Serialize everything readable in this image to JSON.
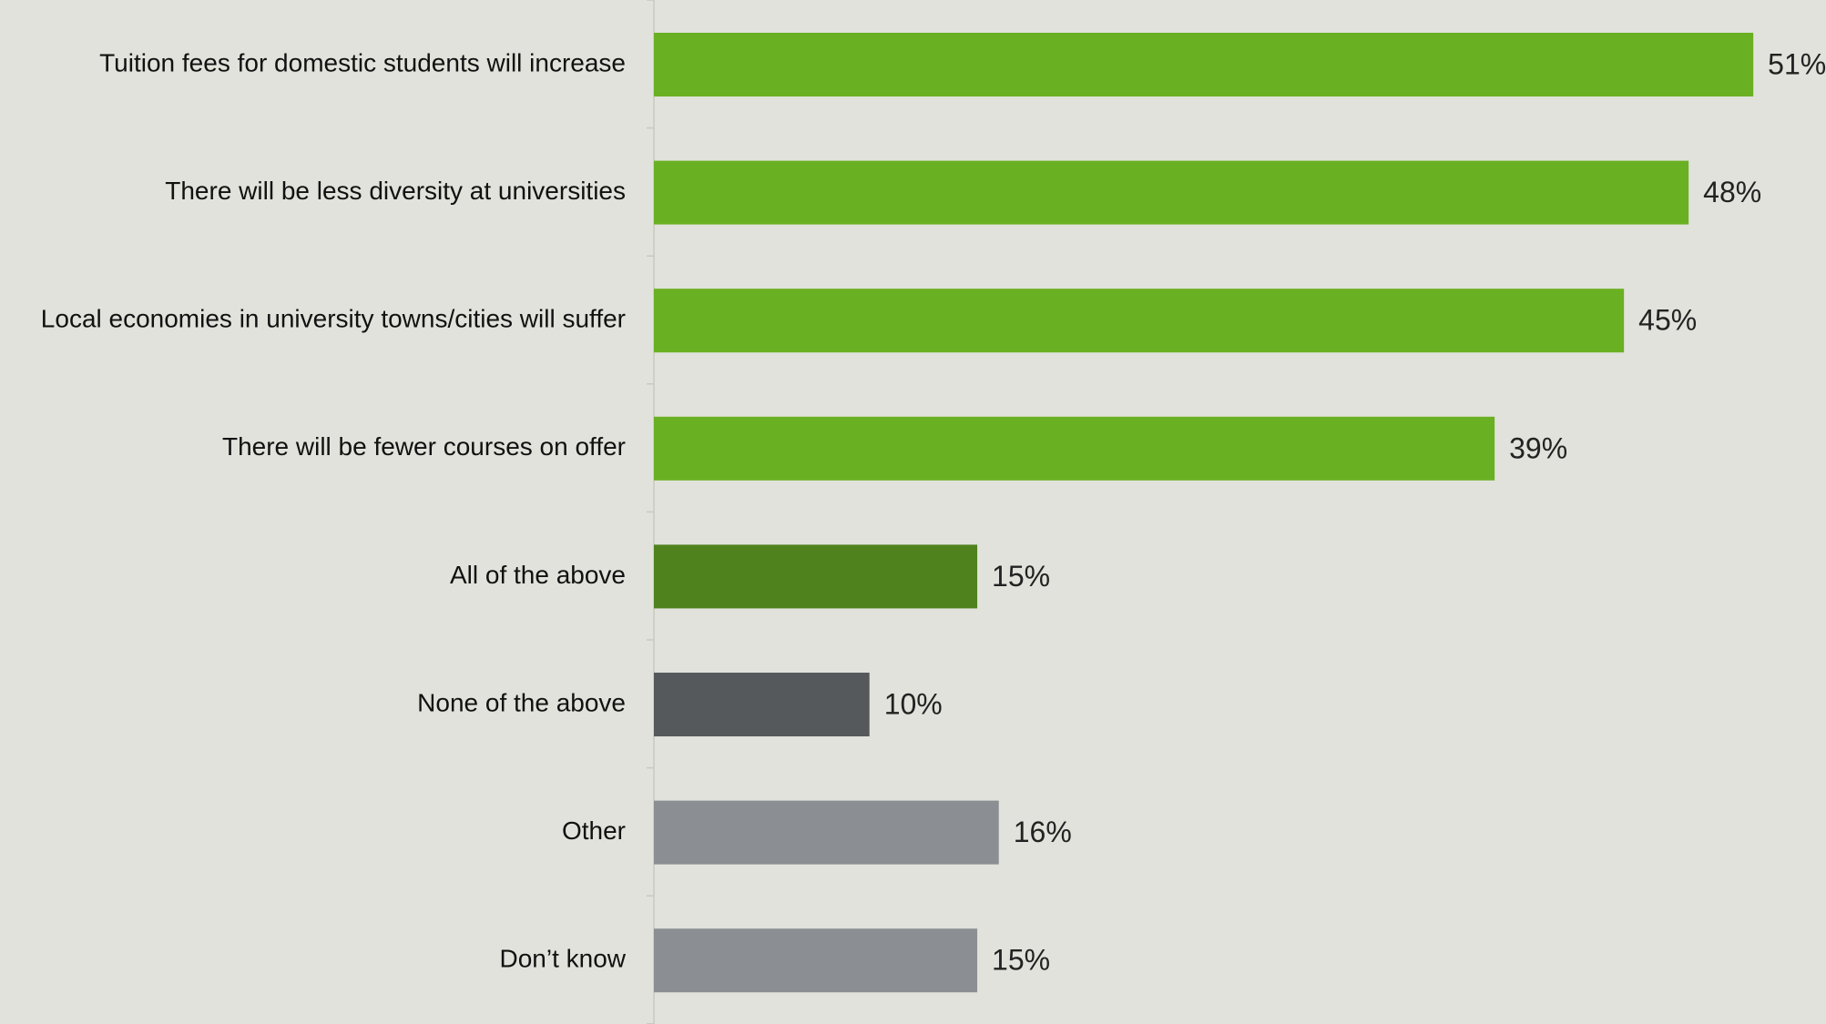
{
  "chart_data": {
    "type": "bar",
    "orientation": "horizontal",
    "categories": [
      "Tuition fees for domestic students will increase",
      "There will be less diversity at universities",
      "Local economies in university towns/cities will suffer",
      "There will be fewer courses on offer",
      "All of the above",
      "None of the above",
      "Other",
      "Don’t know"
    ],
    "values": [
      51,
      48,
      45,
      39,
      15,
      10,
      16,
      15
    ],
    "value_labels": [
      "51%",
      "48%",
      "45%",
      "39%",
      "15%",
      "10%",
      "16%",
      "15%"
    ],
    "bar_colors": [
      "#6ab023",
      "#6ab023",
      "#6ab023",
      "#6ab023",
      "#4f821c",
      "#55595c",
      "#8b8f93",
      "#8b8f93"
    ],
    "unit": "%",
    "title": "",
    "xlabel": "",
    "ylabel": "",
    "grid": false,
    "legend": "none"
  },
  "colors": {
    "background": "#e1e2db",
    "axis_line": "#c8c9c2"
  }
}
